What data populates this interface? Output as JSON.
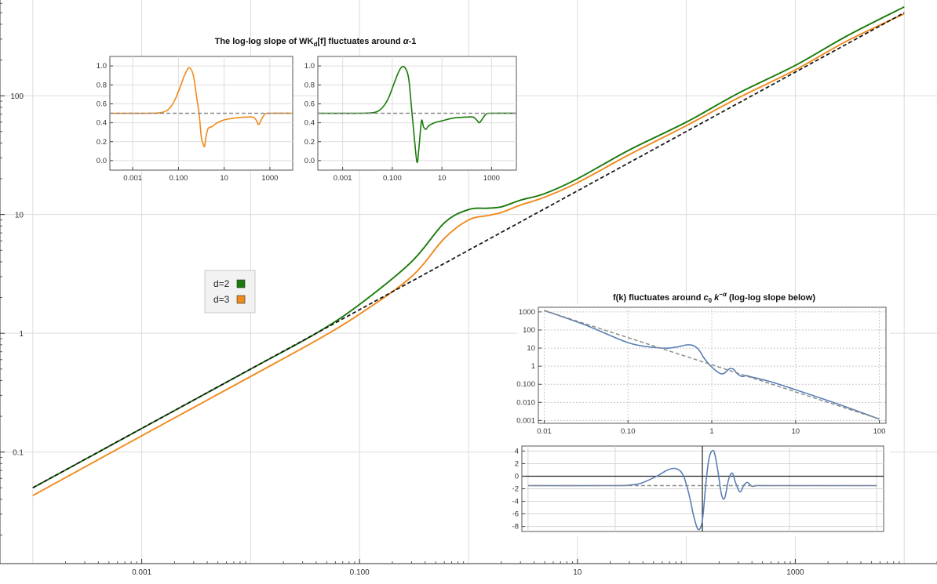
{
  "colors": {
    "d2": "#1a7a0a",
    "d3": "#f08a1c",
    "reference": "#111111",
    "inset_curve": "#5a7fb5",
    "dashed_gray": "#8a8a8a",
    "grid": "#d8d8d8"
  },
  "legend": {
    "items": [
      {
        "label": "d=2",
        "color": "#1a7a0a"
      },
      {
        "label": "d=3",
        "color": "#f08a1c"
      }
    ]
  },
  "chart_data": [
    {
      "id": "main",
      "type": "line",
      "log_x": true,
      "log_y": true,
      "xlim": [
        5e-05,
        20000
      ],
      "ylim": [
        0.0115,
        640
      ],
      "x_ticks": [
        "0.001",
        "0.100",
        "10",
        "1000"
      ],
      "y_ticks": [
        "0.1",
        "1",
        "10",
        "100"
      ],
      "grid": true,
      "legend_position": "left-center",
      "series": [
        {
          "name": "d=2",
          "color": "#1a7a0a",
          "style": "solid",
          "x": [
            0.0001,
            0.001,
            0.01,
            0.04,
            0.1,
            0.3,
            0.6,
            1.0,
            1.5,
            2.0,
            3.0,
            5.0,
            10,
            30,
            100,
            300,
            1000,
            3000,
            10000
          ],
          "y": [
            0.05,
            0.158,
            0.5,
            1.0,
            1.75,
            4.0,
            8.5,
            11.0,
            11.3,
            11.6,
            13.2,
            15.0,
            20.0,
            35.0,
            60.0,
            105.0,
            180.0,
            320.0,
            560.0
          ]
        },
        {
          "name": "d=3",
          "color": "#f08a1c",
          "style": "solid",
          "x": [
            0.0001,
            0.001,
            0.01,
            0.04,
            0.1,
            0.3,
            0.6,
            1.0,
            1.5,
            2.0,
            3.0,
            5.0,
            10,
            30,
            100,
            300,
            1000,
            3000,
            10000
          ],
          "y": [
            0.043,
            0.137,
            0.433,
            0.87,
            1.45,
            3.0,
            6.3,
            9.0,
            9.8,
            10.4,
            12.0,
            14.0,
            18.5,
            32.0,
            56.0,
            96.0,
            165.0,
            290.0,
            490.0
          ]
        },
        {
          "name": "",
          "color": "#111111",
          "style": "dashed",
          "x": [
            0.0001,
            10000
          ],
          "y": [
            0.05,
            500.0
          ]
        }
      ]
    },
    {
      "id": "inset-d3-slope",
      "type": "line",
      "log_x": true,
      "xlim": [
        0.0001,
        10000
      ],
      "ylim": [
        -0.1,
        1.1
      ],
      "x_ticks": [
        "0.001",
        "0.100",
        "10",
        "1000"
      ],
      "y_ticks": [
        "0.0",
        "0.2",
        "0.4",
        "0.6",
        "0.8",
        "1.0"
      ],
      "grid": true,
      "series": [
        {
          "name": "",
          "color": "#f08a1c",
          "style": "solid",
          "x": [
            0.0001,
            0.005,
            0.02,
            0.04,
            0.07,
            0.12,
            0.2,
            0.3,
            0.45,
            0.6,
            0.8,
            1.0,
            1.2,
            1.4,
            1.6,
            2.0,
            3.0,
            5.0,
            10,
            30,
            100,
            180,
            250,
            320,
            400,
            600,
            1000,
            10000
          ],
          "y": [
            0.5,
            0.5,
            0.51,
            0.55,
            0.64,
            0.78,
            0.92,
            0.98,
            0.9,
            0.7,
            0.5,
            0.25,
            0.18,
            0.15,
            0.25,
            0.34,
            0.36,
            0.4,
            0.43,
            0.45,
            0.46,
            0.46,
            0.43,
            0.38,
            0.42,
            0.49,
            0.5,
            0.5
          ]
        },
        {
          "name": "",
          "color": "#8a8a8a",
          "style": "dashed",
          "x": [
            0.0001,
            10000
          ],
          "y": [
            0.5,
            0.5
          ]
        }
      ]
    },
    {
      "id": "inset-d2-slope",
      "type": "line",
      "log_x": true,
      "xlim": [
        0.0001,
        10000
      ],
      "ylim": [
        -0.1,
        1.1
      ],
      "x_ticks": [
        "0.001",
        "0.100",
        "10",
        "1000"
      ],
      "y_ticks": [
        "0.0",
        "0.2",
        "0.4",
        "0.6",
        "0.8",
        "1.0"
      ],
      "grid": true,
      "series": [
        {
          "name": "",
          "color": "#1a7a0a",
          "style": "solid",
          "x": [
            0.0001,
            0.005,
            0.02,
            0.04,
            0.07,
            0.12,
            0.2,
            0.3,
            0.45,
            0.6,
            0.8,
            1.0,
            1.2,
            1.5,
            1.8,
            2.2,
            2.6,
            3.0,
            5.0,
            10,
            30,
            100,
            180,
            250,
            320,
            400,
            600,
            1000,
            10000
          ],
          "y": [
            0.5,
            0.5,
            0.51,
            0.56,
            0.66,
            0.82,
            0.96,
            0.99,
            0.88,
            0.55,
            0.2,
            -0.02,
            0.15,
            0.42,
            0.36,
            0.33,
            0.35,
            0.37,
            0.4,
            0.42,
            0.45,
            0.46,
            0.46,
            0.43,
            0.4,
            0.43,
            0.49,
            0.5,
            0.5
          ]
        },
        {
          "name": "",
          "color": "#8a8a8a",
          "style": "dashed",
          "x": [
            0.0001,
            10000
          ],
          "y": [
            0.5,
            0.5
          ]
        }
      ]
    },
    {
      "id": "inset-f-k",
      "type": "line",
      "log_x": true,
      "log_y": true,
      "xlim": [
        0.0085,
        120
      ],
      "ylim": [
        0.0007,
        1800
      ],
      "x_ticks": [
        "0.01",
        "0.10",
        "1",
        "10",
        "100"
      ],
      "y_ticks": [
        "1000",
        "100",
        "10",
        "1",
        "0.100",
        "0.010",
        "0.001"
      ],
      "grid": true,
      "series": [
        {
          "name": "",
          "color": "#5a7fb5",
          "style": "solid",
          "x": [
            0.01,
            0.03,
            0.1,
            0.2,
            0.3,
            0.4,
            0.5,
            0.6,
            0.7,
            0.8,
            0.9,
            1.0,
            1.1,
            1.25,
            1.4,
            1.6,
            1.8,
            2.0,
            2.3,
            2.6,
            3.0,
            5.0,
            10,
            30,
            100
          ],
          "y": [
            1200,
            200,
            20,
            11,
            10,
            12,
            15,
            14,
            8,
            3,
            1.5,
            0.9,
            0.6,
            0.4,
            0.4,
            0.7,
            0.7,
            0.4,
            0.27,
            0.3,
            0.25,
            0.14,
            0.05,
            0.009,
            0.0012
          ]
        },
        {
          "name": "",
          "color": "#8a8a8a",
          "style": "dashed",
          "x": [
            0.01,
            100
          ],
          "y": [
            1200,
            0.0012
          ]
        }
      ]
    },
    {
      "id": "inset-slope",
      "type": "line",
      "log_x": true,
      "xlim": [
        0.0085,
        120
      ],
      "ylim": [
        -8.8,
        4.8
      ],
      "y_ticks": [
        "4",
        "2",
        "0",
        "-2",
        "-4",
        "-6",
        "-8"
      ],
      "grid": true,
      "series": [
        {
          "name": "",
          "color": "#5a7fb5",
          "style": "solid",
          "x": [
            0.01,
            0.1,
            0.15,
            0.2,
            0.3,
            0.4,
            0.5,
            0.6,
            0.7,
            0.8,
            0.9,
            1.0,
            1.1,
            1.2,
            1.35,
            1.5,
            1.65,
            1.8,
            2.0,
            2.2,
            2.4,
            2.7,
            3.0,
            3.3,
            3.7,
            4.2,
            5,
            8,
            10,
            30,
            100
          ],
          "y": [
            -1.5,
            -1.5,
            -1.4,
            -1.1,
            0.0,
            1.0,
            1.2,
            0.2,
            -2.8,
            -6.5,
            -8.5,
            -7.0,
            -1.0,
            3.0,
            4.0,
            1.0,
            -2.8,
            -3.5,
            -0.5,
            0.5,
            -1.0,
            -2.5,
            -1.4,
            -1.0,
            -1.6,
            -1.5,
            -1.5,
            -1.5,
            -1.5,
            -1.5,
            -1.5
          ]
        },
        {
          "name": "",
          "color": "#8a8a8a",
          "style": "dashed",
          "x": [
            0.01,
            100
          ],
          "y": [
            -1.5,
            -1.5
          ]
        }
      ]
    }
  ]
}
